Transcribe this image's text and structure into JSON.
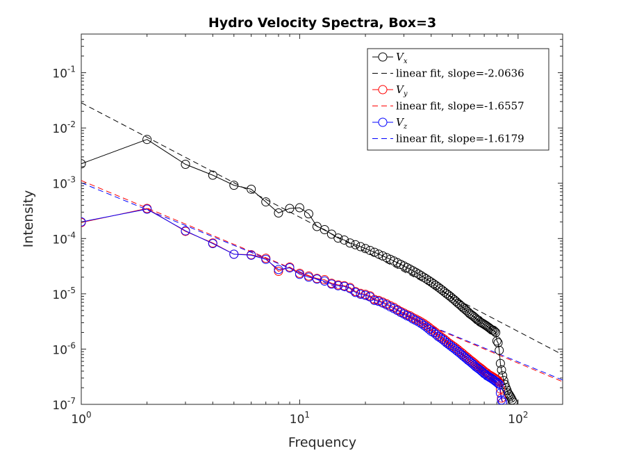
{
  "chart_data": {
    "type": "line",
    "title": "Hydro Velocity Spectra, Box=3",
    "xlabel": "Frequency",
    "ylabel": "Intensity",
    "xscale": "log",
    "yscale": "log",
    "xlim": [
      1,
      160
    ],
    "ylim": [
      1e-07,
      0.5
    ],
    "x_ticks": [
      {
        "value": 1,
        "base": "10",
        "exp": "0"
      },
      {
        "value": 10,
        "base": "10",
        "exp": "1"
      },
      {
        "value": 100,
        "base": "10",
        "exp": "2"
      }
    ],
    "y_ticks": [
      {
        "value": 1e-07,
        "base": "10",
        "exp": "-7"
      },
      {
        "value": 1e-06,
        "base": "10",
        "exp": "-6"
      },
      {
        "value": 1e-05,
        "base": "10",
        "exp": "-5"
      },
      {
        "value": 0.0001,
        "base": "10",
        "exp": "-4"
      },
      {
        "value": 0.001,
        "base": "10",
        "exp": "-3"
      },
      {
        "value": 0.01,
        "base": "10",
        "exp": "-2"
      },
      {
        "value": 0.1,
        "base": "10",
        "exp": "-1"
      }
    ],
    "grid": false,
    "legend_position": "top-right",
    "series": [
      {
        "name": "V",
        "subscript": "x",
        "color": "#000000",
        "style": "line-circle",
        "x": [
          1,
          2,
          3,
          4,
          5,
          6,
          7,
          8,
          9,
          10,
          11,
          12,
          13,
          14,
          15,
          16,
          17,
          18,
          19,
          20,
          21,
          22,
          23,
          24,
          25,
          26,
          27,
          28,
          29,
          30,
          31,
          32,
          33,
          34,
          35,
          36,
          37,
          38,
          39,
          40,
          41,
          42,
          43,
          44,
          45,
          46,
          47,
          48,
          49,
          50,
          51,
          52,
          53,
          54,
          55,
          56,
          57,
          58,
          59,
          60,
          61,
          62,
          63,
          64,
          65,
          66,
          67,
          68,
          69,
          70,
          71,
          72,
          73,
          74,
          75,
          76,
          77,
          78,
          79,
          80,
          81,
          82,
          83,
          84,
          85,
          86,
          87,
          88,
          89,
          90,
          91,
          92,
          93,
          94,
          95
        ],
        "y": [
          0.00225,
          0.0062,
          0.0022,
          0.0014,
          0.00092,
          0.00078,
          0.00046,
          0.00029,
          0.00035,
          0.00036,
          0.00028,
          0.000165,
          0.000145,
          0.00012,
          0.000102,
          9.4e-05,
          8.3e-05,
          7.73e-05,
          7.13e-05,
          6.58e-05,
          6.09e-05,
          5.64e-05,
          5.23e-05,
          4.86e-05,
          4.52e-05,
          4.21e-05,
          3.92e-05,
          3.66e-05,
          3.41e-05,
          3.19e-05,
          2.98e-05,
          2.79e-05,
          2.61e-05,
          2.44e-05,
          2.28e-05,
          2.13e-05,
          1.99e-05,
          1.86e-05,
          1.74e-05,
          1.63e-05,
          1.52e-05,
          1.42e-05,
          1.33e-05,
          1.24e-05,
          1.16e-05,
          1.08e-05,
          1.01e-05,
          9.5e-06,
          8.9e-06,
          8.3e-06,
          7.8e-06,
          7.3e-06,
          6.8e-06,
          6.4e-06,
          6e-06,
          5.6e-06,
          5.3e-06,
          5e-06,
          4.7e-06,
          4.4e-06,
          4.2e-06,
          4e-06,
          3.8e-06,
          3.6e-06,
          3.4e-06,
          3.3e-06,
          3.1e-06,
          3e-06,
          2.9e-06,
          2.8e-06,
          2.7e-06,
          2.6e-06,
          2.5e-06,
          2.4e-06,
          2.3e-06,
          2.2e-06,
          2.2e-06,
          2.1e-06,
          2e-06,
          1.4e-06,
          1.3e-06,
          9.5e-07,
          5.5e-07,
          4.2e-07,
          3.3e-07,
          2.7e-07,
          2.3e-07,
          2e-07,
          1.8e-07,
          1.6e-07,
          1.5e-07,
          1.4e-07,
          1.3e-07,
          1.2e-07,
          1.1e-07
        ]
      },
      {
        "name": "linear fit, slope=-2.0636",
        "color": "#000000",
        "style": "dashed",
        "x": [
          1,
          160
        ],
        "y": [
          0.0285,
          7.9e-07
        ]
      },
      {
        "name": "V",
        "subscript": "y",
        "color": "#ff0000",
        "style": "line-circle",
        "x": [
          1,
          2,
          3,
          4,
          5,
          6,
          7,
          8,
          9,
          10,
          11,
          12,
          13,
          14,
          15,
          16,
          17,
          18,
          19,
          20,
          21,
          22,
          23,
          24,
          25,
          26,
          27,
          28,
          29,
          30,
          31,
          32,
          33,
          34,
          35,
          36,
          37,
          38,
          39,
          40,
          41,
          42,
          43,
          44,
          45,
          46,
          47,
          48,
          49,
          50,
          51,
          52,
          53,
          54,
          55,
          56,
          57,
          58,
          59,
          60,
          61,
          62,
          63,
          64,
          65,
          66,
          67,
          68,
          69,
          70,
          71,
          72,
          73,
          74,
          75,
          76,
          77,
          78,
          79,
          80,
          81,
          82,
          83,
          84,
          85
        ],
        "y": [
          0.000195,
          0.00035,
          0.000135,
          8.3e-05,
          5.2e-05,
          5.1e-05,
          4.4e-05,
          2.55e-05,
          3.05e-05,
          2.35e-05,
          2.1e-05,
          1.9e-05,
          1.8e-05,
          1.55e-05,
          1.45e-05,
          1.4e-05,
          1.3e-05,
          1.1e-05,
          1.02e-05,
          9.8e-06,
          9.2e-06,
          7.9e-06,
          7.6e-06,
          7.1e-06,
          6.6e-06,
          6.1e-06,
          5.7e-06,
          5.2e-06,
          4.8e-06,
          4.5e-06,
          4.2e-06,
          4e-06,
          3.7e-06,
          3.5e-06,
          3.3e-06,
          3.1e-06,
          2.9e-06,
          2.7e-06,
          2.5e-06,
          2.3e-06,
          2.15e-06,
          2e-06,
          1.85e-06,
          1.7e-06,
          1.6e-06,
          1.5e-06,
          1.4e-06,
          1.3e-06,
          1.23e-06,
          1.16e-06,
          1.1e-06,
          1.04e-06,
          9.8e-07,
          9.2e-07,
          8.7e-07,
          8.2e-07,
          7.7e-07,
          7.3e-07,
          6.9e-07,
          6.5e-07,
          6.2e-07,
          5.9e-07,
          5.6e-07,
          5.3e-07,
          5e-07,
          4.8e-07,
          4.6e-07,
          4.4e-07,
          4.2e-07,
          4e-07,
          3.8e-07,
          3.7e-07,
          3.5e-07,
          3.4e-07,
          3.3e-07,
          3.2e-07,
          3.1e-07,
          3e-07,
          2.9e-07,
          2.8e-07,
          2.7e-07,
          2.5e-07,
          1.9e-07,
          1.3e-07,
          1.1e-07
        ]
      },
      {
        "name": "linear fit, slope=-1.6557",
        "color": "#ff0000",
        "style": "dashed",
        "x": [
          1,
          160
        ],
        "y": [
          0.00112,
          2.57e-07
        ]
      },
      {
        "name": "V",
        "subscript": "z",
        "color": "#0000ff",
        "style": "line-circle",
        "x": [
          1,
          2,
          3,
          4,
          5,
          6,
          7,
          8,
          9,
          10,
          11,
          12,
          13,
          14,
          15,
          16,
          17,
          18,
          19,
          20,
          21,
          22,
          23,
          24,
          25,
          26,
          27,
          28,
          29,
          30,
          31,
          32,
          33,
          34,
          35,
          36,
          37,
          38,
          39,
          40,
          41,
          42,
          43,
          44,
          45,
          46,
          47,
          48,
          49,
          50,
          51,
          52,
          53,
          54,
          55,
          56,
          57,
          58,
          59,
          60,
          61,
          62,
          63,
          64,
          65,
          66,
          67,
          68,
          69,
          70,
          71,
          72,
          73,
          74,
          75,
          76,
          77,
          78,
          79,
          80,
          81,
          82,
          83,
          84,
          85
        ],
        "y": [
          0.0002,
          0.00034,
          0.000138,
          8.1e-05,
          5.2e-05,
          5e-05,
          4.2e-05,
          2.75e-05,
          2.95e-05,
          2.25e-05,
          2e-05,
          1.85e-05,
          1.7e-05,
          1.5e-05,
          1.4e-05,
          1.36e-05,
          1.25e-05,
          1.06e-05,
          9.8e-06,
          9.4e-06,
          8.8e-06,
          7.6e-06,
          7.3e-06,
          6.8e-06,
          6.3e-06,
          5.8e-06,
          5.4e-06,
          5e-06,
          4.6e-06,
          4.3e-06,
          4e-06,
          3.8e-06,
          3.5e-06,
          3.3e-06,
          3.1e-06,
          2.9e-06,
          2.7e-06,
          2.5e-06,
          2.3e-06,
          2.1e-06,
          2e-06,
          1.85e-06,
          1.7e-06,
          1.6e-06,
          1.5e-06,
          1.4e-06,
          1.3e-06,
          1.22e-06,
          1.15e-06,
          1.08e-06,
          1.02e-06,
          9.6e-07,
          9e-07,
          8.5e-07,
          8e-07,
          7.5e-07,
          7.1e-07,
          6.7e-07,
          6.3e-07,
          6e-07,
          5.7e-07,
          5.4e-07,
          5.1e-07,
          4.8e-07,
          4.6e-07,
          4.4e-07,
          4.2e-07,
          4e-07,
          3.8e-07,
          3.6e-07,
          3.5e-07,
          3.3e-07,
          3.2e-07,
          3.1e-07,
          3e-07,
          2.9e-07,
          2.8e-07,
          2.7e-07,
          2.6e-07,
          2.5e-07,
          2.4e-07,
          2.3e-07,
          1.6e-07,
          1.2e-07,
          1.1e-07
        ]
      },
      {
        "name": "linear fit, slope=-1.6179",
        "color": "#0000ff",
        "style": "dashed",
        "x": [
          1,
          160
        ],
        "y": [
          0.00102,
          2.75e-07
        ]
      }
    ]
  }
}
